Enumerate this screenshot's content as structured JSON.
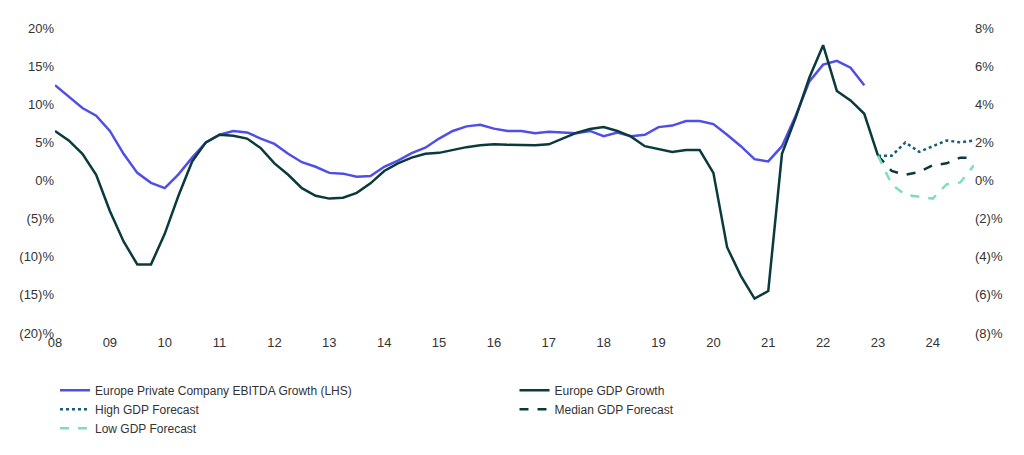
{
  "chart_data": {
    "type": "line",
    "categories": [
      "08",
      null,
      null,
      null,
      "09",
      null,
      null,
      null,
      "10",
      null,
      null,
      null,
      "11",
      null,
      null,
      null,
      "12",
      null,
      null,
      null,
      "13",
      null,
      null,
      null,
      "14",
      null,
      null,
      null,
      "15",
      null,
      null,
      null,
      "16",
      null,
      null,
      null,
      "17",
      null,
      null,
      null,
      "18",
      null,
      null,
      null,
      "19",
      null,
      null,
      null,
      "20",
      null,
      null,
      null,
      "21",
      null,
      null,
      null,
      "22",
      null,
      null,
      null,
      "23",
      null,
      null,
      null,
      "24",
      null,
      null,
      null
    ],
    "series": [
      {
        "name": "Europe Private Company EBITDA Growth (LHS)",
        "color": "#4f4fe8",
        "line_style": "solid",
        "values": [
          12.5,
          11,
          9.5,
          8.5,
          6.5,
          3.5,
          1,
          -0.3,
          -1,
          0.8,
          3,
          5,
          6,
          6.5,
          6.3,
          5.5,
          4.8,
          3.5,
          2.4,
          1.8,
          1,
          0.9,
          0.5,
          0.6,
          1.8,
          2.6,
          3.6,
          4.3,
          5.5,
          6.5,
          7.1,
          7.3,
          6.8,
          6.5,
          6.5,
          6.2,
          6.4,
          6.3,
          6.2,
          6.5,
          5.8,
          6.3,
          5.8,
          6.0,
          7.0,
          7.2,
          7.8,
          7.8,
          7.4,
          6.0,
          4.5,
          2.8,
          2.5,
          4.5,
          8.5,
          13,
          15.2,
          15.7,
          14.8,
          12.5,
          null,
          null,
          null,
          null,
          null,
          null,
          null,
          null
        ]
      },
      {
        "name": "Europe GDP Growth",
        "color": "#0b3a3e",
        "line_style": "solid",
        "axis": "y2",
        "values": [
          2.6,
          2.1,
          1.4,
          0.3,
          -1.6,
          -3.2,
          -4.4,
          -4.4,
          -2.8,
          -0.8,
          1.0,
          2.0,
          2.4,
          2.35,
          2.2,
          1.7,
          0.9,
          0.3,
          -0.4,
          -0.8,
          -0.95,
          -0.9,
          -0.65,
          -0.15,
          0.5,
          0.9,
          1.2,
          1.4,
          1.45,
          1.6,
          1.75,
          1.85,
          1.9,
          1.87,
          1.85,
          1.85,
          1.9,
          2.2,
          2.5,
          2.7,
          2.8,
          2.6,
          2.3,
          1.8,
          1.65,
          1.5,
          1.6,
          1.6,
          0.4,
          -3.5,
          -5.0,
          -6.2,
          -5.8,
          1.4,
          3.3,
          5.4,
          7.1,
          4.7,
          4.2,
          3.5,
          1.3,
          null,
          null,
          null,
          null,
          null,
          null,
          null
        ]
      },
      {
        "name": "High GDP Forecast",
        "color": "#1b5e7a",
        "line_style": "dot",
        "axis": "y2",
        "values": [
          null,
          null,
          null,
          null,
          null,
          null,
          null,
          null,
          null,
          null,
          null,
          null,
          null,
          null,
          null,
          null,
          null,
          null,
          null,
          null,
          null,
          null,
          null,
          null,
          null,
          null,
          null,
          null,
          null,
          null,
          null,
          null,
          null,
          null,
          null,
          null,
          null,
          null,
          null,
          null,
          null,
          null,
          null,
          null,
          null,
          null,
          null,
          null,
          null,
          null,
          null,
          null,
          null,
          null,
          null,
          null,
          null,
          null,
          null,
          null,
          1.3,
          1.3,
          2.0,
          1.5,
          1.8,
          2.1,
          2.0,
          2.1
        ]
      },
      {
        "name": "Median GDP Forecast",
        "color": "#0b3a3e",
        "line_style": "dash",
        "axis": "y2",
        "values": [
          null,
          null,
          null,
          null,
          null,
          null,
          null,
          null,
          null,
          null,
          null,
          null,
          null,
          null,
          null,
          null,
          null,
          null,
          null,
          null,
          null,
          null,
          null,
          null,
          null,
          null,
          null,
          null,
          null,
          null,
          null,
          null,
          null,
          null,
          null,
          null,
          null,
          null,
          null,
          null,
          null,
          null,
          null,
          null,
          null,
          null,
          null,
          null,
          null,
          null,
          null,
          null,
          null,
          null,
          null,
          null,
          null,
          null,
          null,
          null,
          1.3,
          0.5,
          0.3,
          0.45,
          0.8,
          0.9,
          1.2,
          1.2
        ]
      },
      {
        "name": "Low GDP Forecast",
        "color": "#7fdcc0",
        "line_style": "dash",
        "axis": "y2",
        "values": [
          null,
          null,
          null,
          null,
          null,
          null,
          null,
          null,
          null,
          null,
          null,
          null,
          null,
          null,
          null,
          null,
          null,
          null,
          null,
          null,
          null,
          null,
          null,
          null,
          null,
          null,
          null,
          null,
          null,
          null,
          null,
          null,
          null,
          null,
          null,
          null,
          null,
          null,
          null,
          null,
          null,
          null,
          null,
          null,
          null,
          null,
          null,
          null,
          null,
          null,
          null,
          null,
          null,
          null,
          null,
          null,
          null,
          null,
          null,
          null,
          1.3,
          -0.2,
          -0.75,
          -0.85,
          -0.95,
          -0.2,
          -0.1,
          0.8
        ]
      }
    ],
    "ylim": [
      -20,
      20
    ],
    "yticks": [
      {
        "value": -20,
        "label": "(20)%"
      },
      {
        "value": -15,
        "label": "(15)%"
      },
      {
        "value": -10,
        "label": "(10)%"
      },
      {
        "value": -5,
        "label": "(5)%"
      },
      {
        "value": 0,
        "label": "0%"
      },
      {
        "value": 5,
        "label": "5%"
      },
      {
        "value": 10,
        "label": "10%"
      },
      {
        "value": 15,
        "label": "15%"
      },
      {
        "value": 20,
        "label": "20%"
      }
    ],
    "y2lim": [
      -8,
      8
    ],
    "y2ticks": [
      {
        "value": -8,
        "label": "(8)%"
      },
      {
        "value": -6,
        "label": "(6)%"
      },
      {
        "value": -4,
        "label": "(4)%"
      },
      {
        "value": -2,
        "label": "(2)%"
      },
      {
        "value": 0,
        "label": "0%"
      },
      {
        "value": 2,
        "label": "2%"
      },
      {
        "value": 4,
        "label": "4%"
      },
      {
        "value": 6,
        "label": "6%"
      },
      {
        "value": 8,
        "label": "8%"
      }
    ],
    "grid": false,
    "legend": "bottom"
  }
}
